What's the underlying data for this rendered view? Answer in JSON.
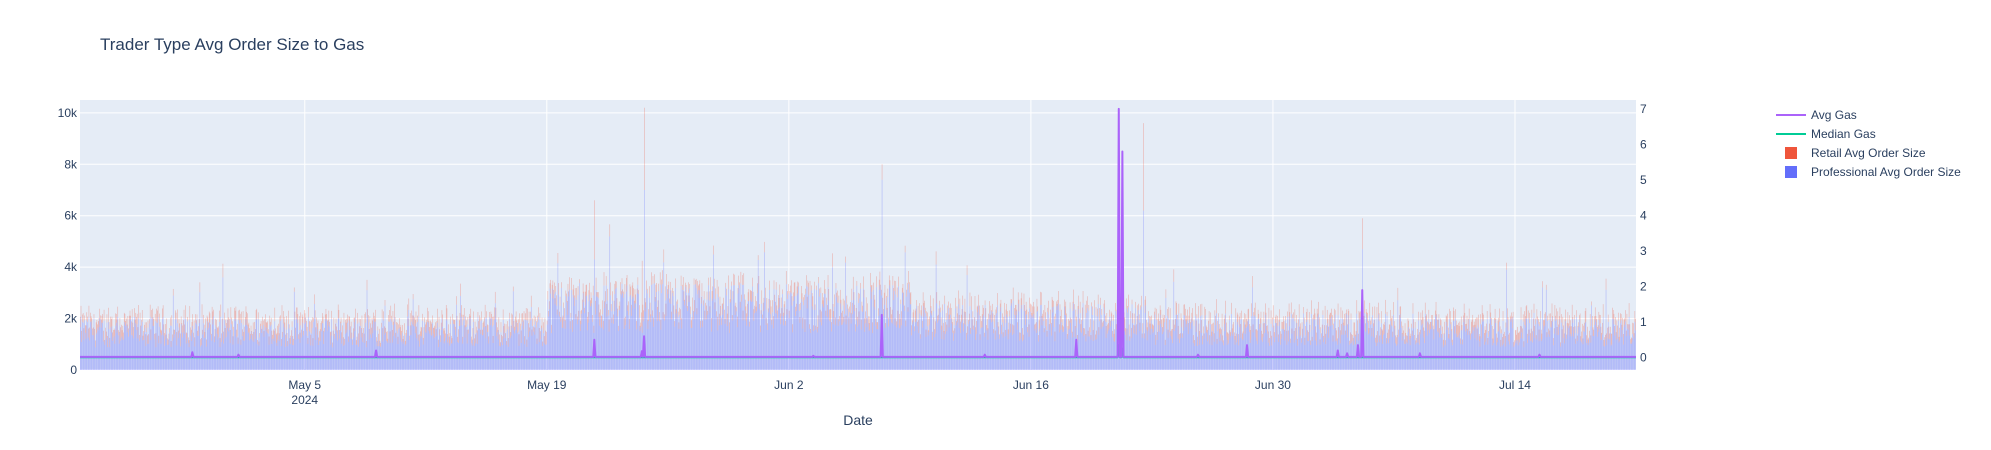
{
  "chart_data": {
    "type": "bar+line",
    "title": "Trader Type Avg Order Size to Gas",
    "xlabel": "Date",
    "ylabel": "",
    "y2label": "",
    "x_ticks": [
      {
        "date": "2024-05-05",
        "label": "May 5",
        "sublabel": "2024"
      },
      {
        "date": "2024-05-19",
        "label": "May 19",
        "sublabel": ""
      },
      {
        "date": "2024-06-02",
        "label": "Jun 2",
        "sublabel": ""
      },
      {
        "date": "2024-06-16",
        "label": "Jun 16",
        "sublabel": ""
      },
      {
        "date": "2024-06-30",
        "label": "Jun 30",
        "sublabel": ""
      },
      {
        "date": "2024-07-14",
        "label": "Jul 14",
        "sublabel": ""
      }
    ],
    "xrange": [
      "2024-04-22T00:00",
      "2024-07-21T00:00"
    ],
    "ylim": [
      0,
      10500
    ],
    "y_ticks": [
      {
        "value": 0,
        "label": "0"
      },
      {
        "value": 2000,
        "label": "2k"
      },
      {
        "value": 4000,
        "label": "4k"
      },
      {
        "value": 6000,
        "label": "6k"
      },
      {
        "value": 8000,
        "label": "8k"
      },
      {
        "value": 10000,
        "label": "10k"
      }
    ],
    "y2lim": [
      -0.35,
      7.25
    ],
    "y2_ticks": [
      {
        "value": 0,
        "label": "0"
      },
      {
        "value": 1,
        "label": "1"
      },
      {
        "value": 2,
        "label": "2"
      },
      {
        "value": 3,
        "label": "3"
      },
      {
        "value": 4,
        "label": "4"
      },
      {
        "value": 5,
        "label": "5"
      },
      {
        "value": 6,
        "label": "6"
      },
      {
        "value": 7,
        "label": "7"
      }
    ],
    "grid": true,
    "legend": "right",
    "barmode": "stack",
    "series": [
      {
        "name": "Avg Gas",
        "type": "line",
        "axis": "y2",
        "color": "#ab63fa",
        "baseline": 0.02,
        "spikes": [
          {
            "date": "2024-04-28T12:00",
            "value": 0.15
          },
          {
            "date": "2024-05-01T04:00",
            "value": 0.08
          },
          {
            "date": "2024-05-09T03:00",
            "value": 0.2
          },
          {
            "date": "2024-05-21T18:00",
            "value": 0.5
          },
          {
            "date": "2024-05-24T12:00",
            "value": 0.18
          },
          {
            "date": "2024-05-24T15:00",
            "value": 0.6
          },
          {
            "date": "2024-06-03T10:00",
            "value": 0.05
          },
          {
            "date": "2024-06-07T09:00",
            "value": 1.2
          },
          {
            "date": "2024-06-13T08:00",
            "value": 0.08
          },
          {
            "date": "2024-06-18T15:00",
            "value": 0.5
          },
          {
            "date": "2024-06-21T02:00",
            "value": 7.0
          },
          {
            "date": "2024-06-21T07:00",
            "value": 5.8
          },
          {
            "date": "2024-06-25T16:00",
            "value": 0.08
          },
          {
            "date": "2024-06-28T12:00",
            "value": 0.35
          },
          {
            "date": "2024-07-03T18:00",
            "value": 0.2
          },
          {
            "date": "2024-07-04T07:00",
            "value": 0.12
          },
          {
            "date": "2024-07-04T22:00",
            "value": 0.35
          },
          {
            "date": "2024-07-05T04:00",
            "value": 1.9
          },
          {
            "date": "2024-07-08T12:00",
            "value": 0.12
          },
          {
            "date": "2024-07-15T10:00",
            "value": 0.08
          }
        ]
      },
      {
        "name": "Median Gas",
        "type": "line",
        "axis": "y2",
        "color": "#00cc96",
        "baseline": 0.01,
        "spikes": [
          {
            "date": "2024-06-21T02:00",
            "value": 0.35
          },
          {
            "date": "2024-06-21T07:00",
            "value": 0.25
          }
        ]
      },
      {
        "name": "Retail Avg Order Size",
        "type": "bar",
        "axis": "y",
        "color": "#ef553b",
        "typical_range": [
          150,
          550
        ],
        "spikes": [
          {
            "date": "2024-05-21T18:00",
            "value": 2300
          },
          {
            "date": "2024-05-24T12:00",
            "value": 2800
          },
          {
            "date": "2024-05-24T15:00",
            "value": 3200
          },
          {
            "date": "2024-06-22T12:00",
            "value": 3400
          },
          {
            "date": "2024-06-21T02:00",
            "value": 1500
          },
          {
            "date": "2024-07-05T04:00",
            "value": 1200
          },
          {
            "date": "2024-06-07T09:00",
            "value": 600
          }
        ]
      },
      {
        "name": "Professional Avg Order Size",
        "type": "bar",
        "axis": "y",
        "color": "#636efa",
        "typical_range": [
          1200,
          2200
        ],
        "segments": [
          {
            "from": "2024-04-22",
            "to": "2024-05-19",
            "level": 1600
          },
          {
            "from": "2024-05-19",
            "to": "2024-06-09",
            "level": 2600
          },
          {
            "from": "2024-06-09",
            "to": "2024-06-23",
            "level": 2000
          },
          {
            "from": "2024-06-23",
            "to": "2024-07-09",
            "level": 1700
          },
          {
            "from": "2024-07-09",
            "to": "2024-07-21",
            "level": 1600
          }
        ],
        "spikes": [
          {
            "date": "2024-04-30T06:00",
            "value": 3600
          },
          {
            "date": "2024-05-21T18:00",
            "value": 4300
          },
          {
            "date": "2024-05-24T15:00",
            "value": 7000
          },
          {
            "date": "2024-06-04T12:00",
            "value": 4000
          },
          {
            "date": "2024-06-07T09:00",
            "value": 7400
          },
          {
            "date": "2024-06-10T12:00",
            "value": 4100
          },
          {
            "date": "2024-06-21T02:00",
            "value": 8400
          },
          {
            "date": "2024-06-21T07:00",
            "value": 6500
          },
          {
            "date": "2024-06-22T12:00",
            "value": 6200
          },
          {
            "date": "2024-07-05T04:00",
            "value": 4700
          },
          {
            "date": "2024-07-13T12:00",
            "value": 3900
          }
        ]
      }
    ]
  }
}
